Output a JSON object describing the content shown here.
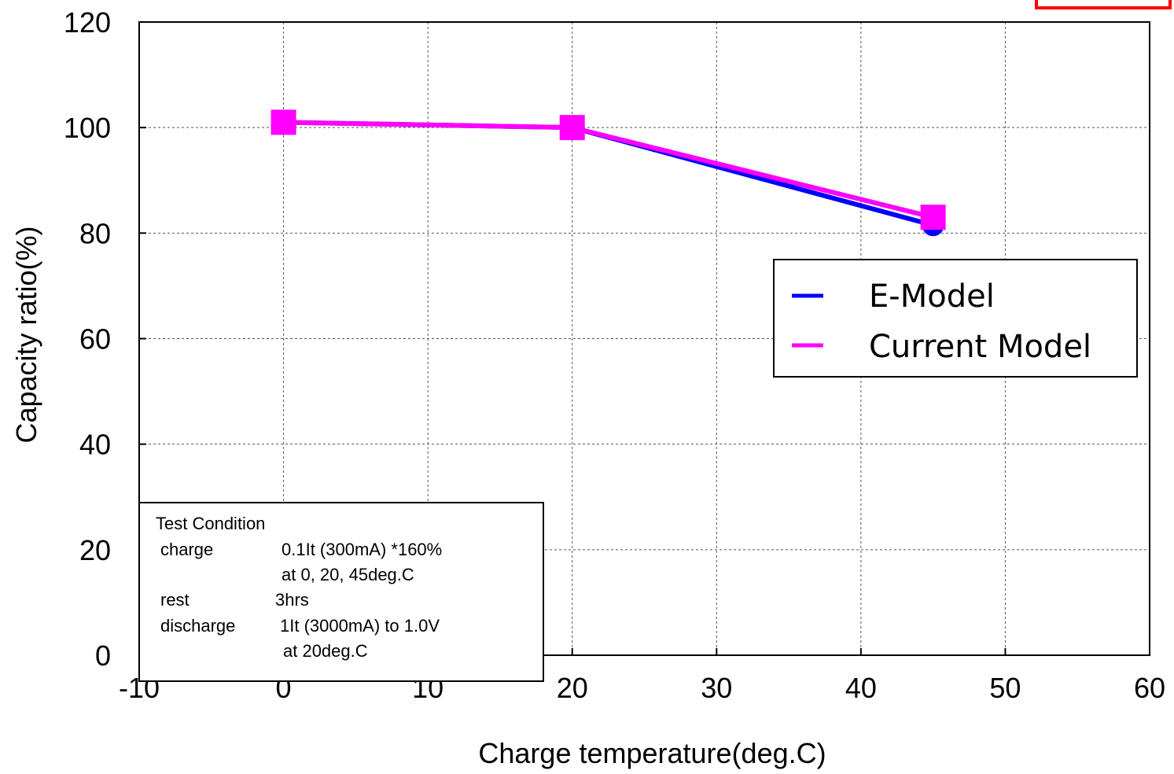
{
  "chart_data": {
    "type": "line",
    "xlabel": "Charge temperature(deg.C)",
    "ylabel": "Capacity ratio(%)",
    "xlim": [
      -10,
      60
    ],
    "ylim": [
      0,
      120
    ],
    "x_ticks": [
      -10,
      0,
      10,
      20,
      30,
      40,
      50,
      60
    ],
    "y_ticks": [
      0,
      20,
      40,
      60,
      80,
      100,
      120
    ],
    "grid": true,
    "legend_placement": "right",
    "series": [
      {
        "name": "E-Model",
        "color": "#0000ff",
        "marker": "circle",
        "x": [
          0,
          20,
          45
        ],
        "y": [
          101,
          100,
          81.5
        ]
      },
      {
        "name": "Current Model",
        "color": "#ff00ff",
        "marker": "square",
        "x": [
          0,
          20,
          45
        ],
        "y": [
          101,
          100,
          83
        ]
      }
    ],
    "annotation": {
      "title": "Test Condition",
      "rows": [
        {
          "label": "charge",
          "value": "0.1It (300mA) *160%"
        },
        {
          "label": "",
          "value": "at 0, 20, 45deg.C"
        },
        {
          "label": "rest",
          "value": "3hrs"
        },
        {
          "label": "discharge",
          "value": "1It (3000mA) to 1.0V"
        },
        {
          "label": "",
          "value": "at 20deg.C"
        }
      ]
    }
  },
  "corner_box_color": "#ff0000"
}
